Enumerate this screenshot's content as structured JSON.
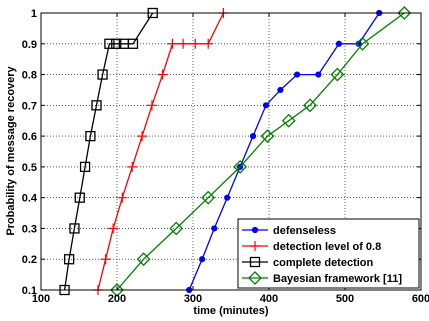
{
  "chart_data": {
    "type": "line",
    "xlabel": "time (minutes)",
    "ylabel": "Probability of message recovery",
    "xlim": [
      100,
      600
    ],
    "ylim": [
      0.1,
      1
    ],
    "xticks": [
      100,
      200,
      300,
      400,
      500,
      600
    ],
    "yticks": [
      0.1,
      0.2,
      0.3,
      0.4,
      0.5,
      0.6,
      0.7,
      0.8,
      0.9,
      1
    ],
    "xtick_labels": [
      "100",
      "200",
      "300",
      "400",
      "500",
      "600"
    ],
    "ytick_labels": [
      "0.1",
      "0.2",
      "0.3",
      "0.4",
      "0.5",
      "0.6",
      "0.7",
      "0.8",
      "0.9",
      "1"
    ],
    "grid": "dotted",
    "legend_position": "bottom-right",
    "series": [
      {
        "name": "defenseless",
        "color": "#0000ff",
        "marker": "dot",
        "x": [
          295,
          312,
          328,
          345,
          362,
          379,
          396,
          415,
          437,
          465,
          492,
          518,
          545
        ],
        "y": [
          0.1,
          0.2,
          0.3,
          0.4,
          0.5,
          0.6,
          0.7,
          0.75,
          0.8,
          0.8,
          0.9,
          0.9,
          1.0
        ]
      },
      {
        "name": "detection level of 0.8",
        "color": "#ff0000",
        "marker": "plus",
        "x": [
          175,
          185,
          195,
          207,
          220,
          233,
          246,
          260,
          273,
          287,
          303,
          320,
          340
        ],
        "y": [
          0.1,
          0.2,
          0.3,
          0.4,
          0.5,
          0.6,
          0.7,
          0.8,
          0.9,
          0.9,
          0.9,
          0.9,
          1.0
        ]
      },
      {
        "name": "complete detection",
        "color": "#000000",
        "marker": "square",
        "x": [
          131,
          137,
          144,
          151,
          158,
          165,
          173,
          181,
          190,
          199,
          209,
          221,
          247
        ],
        "y": [
          0.1,
          0.2,
          0.3,
          0.4,
          0.5,
          0.6,
          0.7,
          0.8,
          0.9,
          0.9,
          0.9,
          0.9,
          1.0
        ]
      },
      {
        "name": "Bayesian framework [11]",
        "color": "#008000",
        "marker": "diamond",
        "x": [
          200,
          235,
          278,
          320,
          362,
          398,
          426,
          454,
          490,
          523,
          578
        ],
        "y": [
          0.1,
          0.2,
          0.3,
          0.4,
          0.5,
          0.6,
          0.65,
          0.7,
          0.8,
          0.9,
          1.0
        ]
      }
    ]
  }
}
